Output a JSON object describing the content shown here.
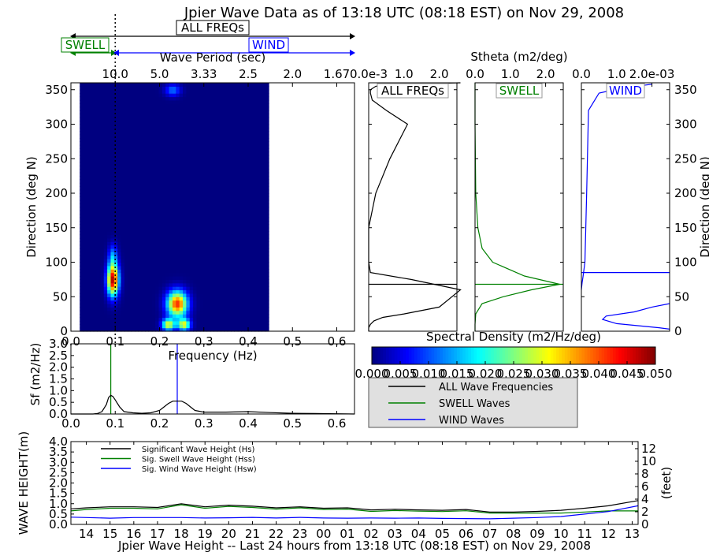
{
  "title": "Jpier Wave Data as of 13:18 UTC (08:18 EST) on Nov 29, 2008",
  "colors": {
    "all": "#000000",
    "swell": "#008000",
    "wind": "#0000ff",
    "legend_bg": "#e0e0e0"
  },
  "bands": {
    "all_label": "ALL FREQs",
    "swell_label": "SWELL",
    "wind_label": "WIND"
  },
  "chart_data": [
    {
      "id": "directional-spectrum",
      "type": "heatmap",
      "xlabel": "Frequency (Hz)",
      "ylabel": "Direction (deg N)",
      "xlim": [
        0.0,
        0.64
      ],
      "ylim": [
        0,
        360
      ],
      "x_ticks": [
        "0.0",
        "0.1",
        "0.2",
        "0.3",
        "0.4",
        "0.5",
        "0.6"
      ],
      "y_ticks": [
        "0",
        "50",
        "100",
        "150",
        "200",
        "250",
        "300",
        "350"
      ],
      "top_axis_label": "Wave Period (sec)",
      "top_ticks": [
        {
          "f": 0.1,
          "label": "10.0"
        },
        {
          "f": 0.2,
          "label": "5.0"
        },
        {
          "f": 0.3,
          "label": "3.33"
        },
        {
          "f": 0.4,
          "label": "2.5"
        },
        {
          "f": 0.5,
          "label": "2.0"
        },
        {
          "f": 0.6,
          "label": "1.67"
        }
      ],
      "swell_wind_split_hz": 0.1,
      "colorbar": {
        "label": "Spectral Density (m2/Hz/deg)",
        "range": [
          0.0,
          0.05
        ],
        "ticks": [
          "0.000",
          "0.005",
          "0.010",
          "0.015",
          "0.020",
          "0.025",
          "0.030",
          "0.035",
          "0.040",
          "0.045",
          "0.050"
        ]
      },
      "blobs": [
        {
          "f": 0.095,
          "df": 0.009,
          "dir": 75,
          "ddir": 16,
          "amp": 0.048
        },
        {
          "f": 0.095,
          "df": 0.007,
          "dir": 110,
          "ddir": 12,
          "amp": 0.012
        },
        {
          "f": 0.24,
          "df": 0.016,
          "dir": 40,
          "ddir": 13,
          "amp": 0.042
        },
        {
          "f": 0.22,
          "df": 0.01,
          "dir": 10,
          "ddir": 6,
          "amp": 0.03
        },
        {
          "f": 0.255,
          "df": 0.01,
          "dir": 10,
          "ddir": 6,
          "amp": 0.03
        },
        {
          "f": 0.23,
          "df": 0.012,
          "dir": 350,
          "ddir": 6,
          "amp": 0.012
        }
      ]
    },
    {
      "id": "stheta-all",
      "type": "line",
      "title": "ALL FREQs",
      "xlim": [
        0.0,
        2.5
      ],
      "x_ticks": [
        "0.0e-3",
        "1.0",
        "2.0"
      ],
      "y_ticks": [],
      "hline": 68,
      "x": [
        0.0,
        0.0,
        0.05,
        0.15,
        0.4,
        1.0,
        2.0,
        2.6,
        1.2,
        0.05,
        0.0,
        0.0,
        0.2,
        0.6,
        1.1,
        0.5,
        0.1,
        0.05,
        0.05,
        0.2,
        0.6,
        2.6
      ],
      "y": [
        0,
        5,
        10,
        15,
        20,
        25,
        35,
        60,
        75,
        85,
        100,
        150,
        200,
        250,
        300,
        320,
        335,
        345,
        350,
        355,
        358,
        360
      ]
    },
    {
      "id": "stheta-swell",
      "type": "line",
      "title": "SWELL",
      "top_axis_label": "Stheta (m2/deg)",
      "xlim": [
        0.0,
        2.5
      ],
      "x_ticks": [
        "0.0",
        "1.0",
        "2.0"
      ],
      "y_ticks": [],
      "hline": 68,
      "x": [
        0.0,
        0.0,
        0.02,
        0.2,
        0.8,
        1.6,
        2.4,
        1.4,
        0.5,
        0.2,
        0.08,
        0.02,
        0.0,
        0.0
      ],
      "y": [
        0,
        10,
        25,
        40,
        50,
        60,
        68,
        80,
        100,
        120,
        150,
        200,
        300,
        360
      ]
    },
    {
      "id": "stheta-wind",
      "type": "line",
      "title": "WIND",
      "xlim": [
        0.0,
        2.5
      ],
      "x_ticks": [
        "0.0",
        "1.0",
        "2.0e-03"
      ],
      "y_ticks": [
        "0",
        "50",
        "100",
        "150",
        "200",
        "250",
        "300",
        "350"
      ],
      "ylabel": "Direction (deg N)",
      "hline": 85,
      "x": [
        2.5,
        2.0,
        1.5,
        0.7,
        0.6,
        1.0,
        2.2,
        2.5
      ],
      "y": [
        40,
        35,
        28,
        22,
        17,
        11,
        5,
        3
      ],
      "x_b": [
        0.0,
        0.02,
        0.05,
        0.1,
        0.15,
        0.2,
        0.5,
        1.1,
        2.0
      ],
      "y_b": [
        60,
        70,
        80,
        100,
        200,
        320,
        345,
        352,
        358
      ]
    },
    {
      "id": "frequency-spectrum",
      "type": "line",
      "xlabel": "Frequency (Hz)",
      "ylabel": "Sf (m2/Hz)",
      "xlim": [
        0.0,
        0.64
      ],
      "ylim": [
        0.0,
        3.0
      ],
      "x_ticks": [
        "0.0",
        "0.1",
        "0.2",
        "0.3",
        "0.4",
        "0.5",
        "0.6"
      ],
      "y_ticks": [
        "0.0",
        "0.5",
        "1.0",
        "1.5",
        "2.0",
        "2.5",
        "3.0"
      ],
      "swell_peak_hz": 0.09,
      "wind_peak_hz": 0.24,
      "x": [
        0.0,
        0.05,
        0.06,
        0.07,
        0.08,
        0.085,
        0.09,
        0.095,
        0.1,
        0.11,
        0.12,
        0.14,
        0.16,
        0.18,
        0.2,
        0.21,
        0.22,
        0.23,
        0.24,
        0.25,
        0.26,
        0.27,
        0.28,
        0.3,
        0.35,
        0.4,
        0.45,
        0.5,
        0.55,
        0.6,
        0.64
      ],
      "values": [
        0.0,
        0.0,
        0.02,
        0.1,
        0.4,
        0.7,
        0.8,
        0.75,
        0.6,
        0.3,
        0.1,
        0.05,
        0.03,
        0.05,
        0.15,
        0.3,
        0.45,
        0.55,
        0.55,
        0.55,
        0.45,
        0.3,
        0.15,
        0.08,
        0.08,
        0.1,
        0.06,
        0.03,
        0.02,
        0.01,
        0.0
      ]
    },
    {
      "id": "wave-height",
      "type": "line",
      "xlabel": "Jpier Wave Height -- Last 24 hours from 13:18 UTC (08:18 EST) on Nov 29, 2008",
      "ylabel_left": "WAVE HEIGHT(m)",
      "ylabel_right": "(feet)",
      "ylim": [
        0.0,
        4.0
      ],
      "ylim_right": [
        0,
        13.12
      ],
      "y_ticks": [
        "0.0",
        "0.5",
        "1.0",
        "1.5",
        "2.0",
        "2.5",
        "3.0",
        "3.5",
        "4.0"
      ],
      "y_ticks_right": [
        "0",
        "2",
        "4",
        "6",
        "8",
        "10",
        "12"
      ],
      "categories": [
        "14",
        "15",
        "16",
        "17",
        "18",
        "19",
        "20",
        "21",
        "22",
        "23",
        "00",
        "01",
        "02",
        "03",
        "04",
        "05",
        "06",
        "07",
        "08",
        "09",
        "10",
        "11",
        "12",
        "13"
      ],
      "x": [
        13.35,
        14,
        15,
        16,
        17,
        18,
        19,
        20,
        21,
        22,
        23,
        24,
        25,
        26,
        27,
        28,
        29,
        30,
        31,
        32,
        33,
        34,
        35,
        36,
        37.25
      ],
      "legend": [
        "Significant Wave Height (Hs)",
        "Sig. Swell Wave Height (Hss)",
        "Sig. Wind Wave Height (Hsw)"
      ],
      "series": [
        {
          "name": "Significant Wave Height (Hs)",
          "values": [
            0.75,
            0.8,
            0.85,
            0.85,
            0.82,
            1.0,
            0.85,
            0.93,
            0.88,
            0.8,
            0.85,
            0.78,
            0.8,
            0.7,
            0.73,
            0.7,
            0.68,
            0.72,
            0.6,
            0.6,
            0.63,
            0.68,
            0.78,
            0.9,
            1.15
          ]
        },
        {
          "name": "Sig. Swell Wave Height (Hss)",
          "values": [
            0.65,
            0.72,
            0.78,
            0.78,
            0.75,
            0.95,
            0.78,
            0.87,
            0.82,
            0.74,
            0.8,
            0.72,
            0.74,
            0.63,
            0.67,
            0.64,
            0.62,
            0.66,
            0.55,
            0.55,
            0.55,
            0.55,
            0.6,
            0.65,
            0.65
          ]
        },
        {
          "name": "Sig. Wind Wave Height (Hsw)",
          "values": [
            0.35,
            0.33,
            0.3,
            0.33,
            0.33,
            0.33,
            0.31,
            0.32,
            0.34,
            0.31,
            0.34,
            0.31,
            0.3,
            0.31,
            0.3,
            0.31,
            0.29,
            0.28,
            0.27,
            0.3,
            0.33,
            0.38,
            0.5,
            0.62,
            0.9
          ]
        }
      ]
    }
  ],
  "legend": {
    "items": [
      {
        "label": "ALL Wave Frequencies",
        "color": "#000000"
      },
      {
        "label": "SWELL Waves",
        "color": "#008000"
      },
      {
        "label": "WIND Waves",
        "color": "#0000ff"
      }
    ]
  }
}
